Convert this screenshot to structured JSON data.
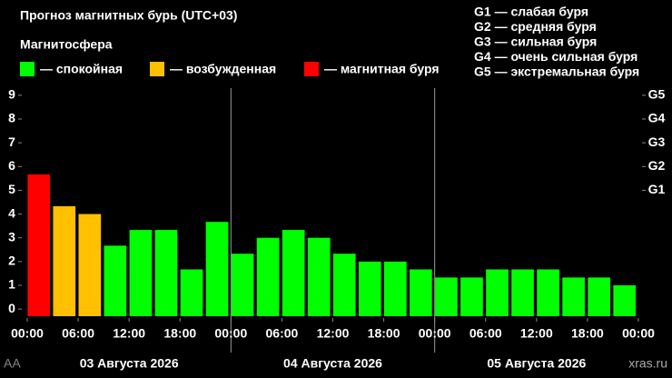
{
  "chart_data": {
    "type": "bar",
    "title": "Прогноз магнитных бурь (UTC+03)",
    "legend_title": "Магнитосфера",
    "legend": [
      {
        "name": "— спокойная",
        "color": "#00ff00"
      },
      {
        "name": "— возбужденная",
        "color": "#ffc000"
      },
      {
        "name": "— магнитная буря",
        "color": "#ff0000"
      }
    ],
    "scale_notes": [
      "G1 — слабая буря",
      "G2 — средняя буря",
      "G3 — сильная буря",
      "G4 — очень сильная буря",
      "G5 — экстремальная буря"
    ],
    "x": [
      0,
      3,
      6,
      9,
      12,
      15,
      18,
      21,
      24,
      27,
      30,
      33,
      36,
      39,
      42,
      45,
      48,
      51,
      54,
      57,
      60,
      63,
      66,
      69
    ],
    "values": [
      5.67,
      4.33,
      4.0,
      2.67,
      3.33,
      3.33,
      1.67,
      3.67,
      2.33,
      3.0,
      3.33,
      3.0,
      2.33,
      2.0,
      2.0,
      1.67,
      1.33,
      1.33,
      1.67,
      1.67,
      1.67,
      1.33,
      1.33,
      1.0
    ],
    "colors": [
      "#ff0000",
      "#ffc000",
      "#ffc000",
      "#00ff00",
      "#00ff00",
      "#00ff00",
      "#00ff00",
      "#00ff00",
      "#00ff00",
      "#00ff00",
      "#00ff00",
      "#00ff00",
      "#00ff00",
      "#00ff00",
      "#00ff00",
      "#00ff00",
      "#00ff00",
      "#00ff00",
      "#00ff00",
      "#00ff00",
      "#00ff00",
      "#00ff00",
      "#00ff00",
      "#00ff00"
    ],
    "xlim": [
      0,
      72
    ],
    "xticks": [
      {
        "value": 0,
        "label": "00:00"
      },
      {
        "value": 6,
        "label": "06:00"
      },
      {
        "value": 12,
        "label": "12:00"
      },
      {
        "value": 18,
        "label": "18:00"
      },
      {
        "value": 24,
        "label": "00:00"
      },
      {
        "value": 30,
        "label": "06:00"
      },
      {
        "value": 36,
        "label": "12:00"
      },
      {
        "value": 42,
        "label": "18:00"
      },
      {
        "value": 48,
        "label": "00:00"
      },
      {
        "value": 54,
        "label": "06:00"
      },
      {
        "value": 60,
        "label": "12:00"
      },
      {
        "value": 66,
        "label": "18:00"
      },
      {
        "value": 72,
        "label": "00:00"
      }
    ],
    "day_bounds": [
      24,
      48
    ],
    "day_labels": [
      "03 Августа 2026",
      "04 Августа 2026",
      "05 Августа 2026"
    ],
    "ylim": [
      -0.3,
      9.3
    ],
    "yticks": [
      0,
      1,
      2,
      3,
      4,
      5,
      6,
      7,
      8,
      9
    ],
    "y2lim": [
      -0.3,
      9.3
    ],
    "y2ticks": [
      {
        "value": 5,
        "label": "G1"
      },
      {
        "value": 6,
        "label": "G2"
      },
      {
        "value": 7,
        "label": "G3"
      },
      {
        "value": 8,
        "label": "G4"
      },
      {
        "value": 9,
        "label": "G5"
      }
    ],
    "watermark": "xras.ru",
    "corner_text": "AA"
  }
}
